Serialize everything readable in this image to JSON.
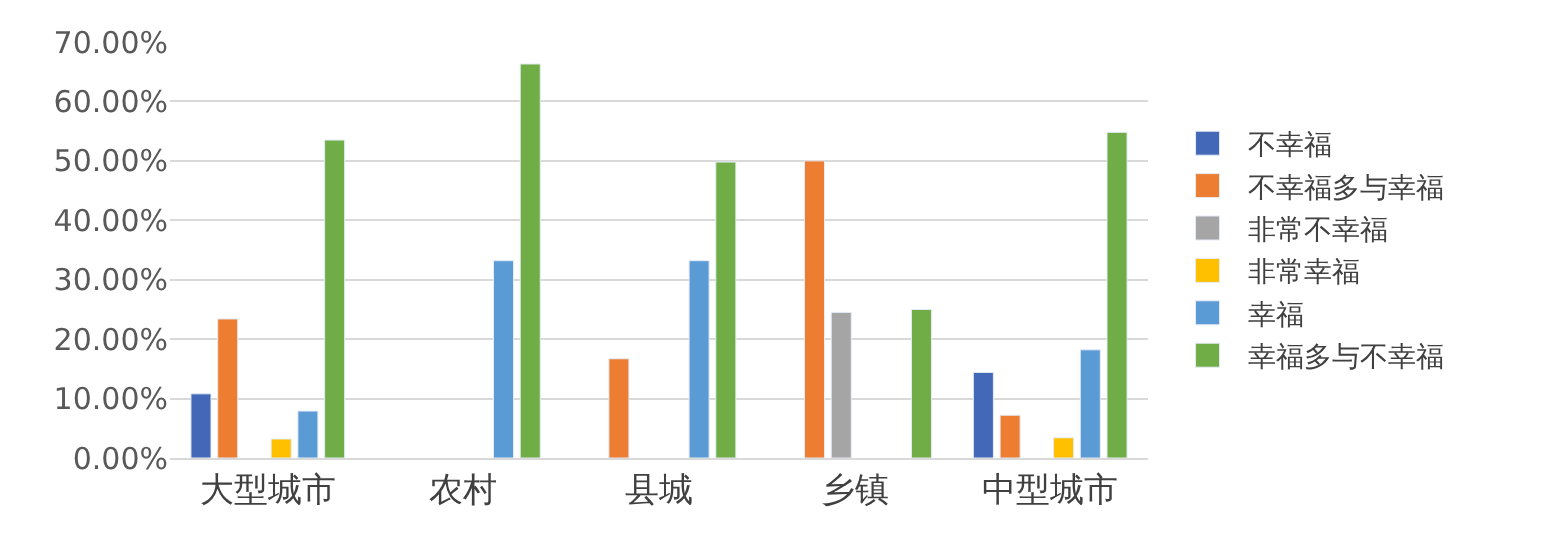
{
  "chart_data": {
    "type": "bar",
    "categories": [
      "大型城市",
      "农村",
      "县城",
      "乡镇",
      "中型城市"
    ],
    "series": [
      {
        "name": "不幸福",
        "color": "#4468b8",
        "values": [
          10.8,
          null,
          null,
          null,
          14.4
        ]
      },
      {
        "name": "不幸福多与幸福",
        "color": "#ed7d31",
        "values": [
          23.4,
          null,
          16.7,
          50,
          7.2
        ]
      },
      {
        "name": "非常不幸福",
        "color": "#a5a5a5",
        "values": [
          null,
          null,
          null,
          24.5,
          null
        ]
      },
      {
        "name": "非常幸福",
        "color": "#ffc000",
        "values": [
          3.2,
          null,
          null,
          null,
          3.4
        ]
      },
      {
        "name": "幸福",
        "color": "#5b9bd5",
        "values": [
          7.9,
          33.2,
          33.2,
          null,
          18.2
        ]
      },
      {
        "name": "幸福多与不幸福",
        "color": "#70ad47",
        "values": [
          53.5,
          66.3,
          49.8,
          25,
          54.8
        ]
      }
    ],
    "ylim": [
      0,
      70
    ],
    "yticks": [
      {
        "value": 0,
        "label": "0.00%"
      },
      {
        "value": 10,
        "label": "10.00%"
      },
      {
        "value": 20,
        "label": "20.00%"
      },
      {
        "value": 30,
        "label": "30.00%"
      },
      {
        "value": 40,
        "label": "40.00%"
      },
      {
        "value": 50,
        "label": "50.00%"
      },
      {
        "value": 60,
        "label": "60.00%"
      },
      {
        "value": 70,
        "label": "70.00%"
      }
    ],
    "grid": "y",
    "legend": "right"
  }
}
